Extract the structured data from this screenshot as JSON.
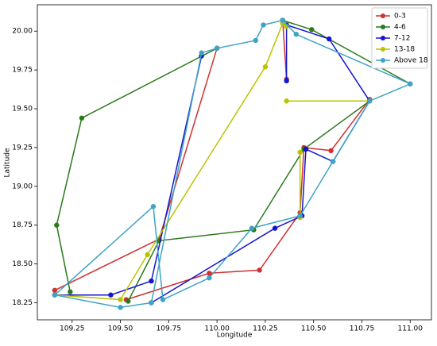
{
  "chart_data": {
    "type": "line",
    "x_label": "Longitude",
    "y_label": "Latitude",
    "xlim": [
      109.07,
      111.11
    ],
    "ylim": [
      18.14,
      20.17
    ],
    "xticks": [
      109.25,
      {
        "value": 109.5,
        "label": "109.50"
      },
      109.75,
      {
        "value": 110,
        "label": "110.00"
      },
      110.25,
      {
        "value": 110.5,
        "label": "110.50"
      },
      110.75,
      {
        "value": 111,
        "label": "111.00"
      }
    ],
    "yticks": [
      18.25,
      {
        "value": 18.5,
        "label": "18.50"
      },
      18.75,
      {
        "value": 19,
        "label": "19.00"
      },
      19.25,
      {
        "value": 19.5,
        "label": "19.50"
      },
      19.75,
      {
        "value": 20,
        "label": "20.00"
      }
    ],
    "legend": "upper right",
    "series": [
      {
        "name": "0-3",
        "color": "#d03030",
        "x": [
          109.16,
          109.7,
          110.0,
          null,
          109.53,
          109.96,
          110.22,
          110.43,
          110.45,
          110.59,
          110.79,
          null,
          110.34,
          110.36
        ],
        "values": [
          18.33,
          18.66,
          19.89,
          null,
          18.27,
          18.44,
          18.46,
          18.83,
          19.25,
          19.23,
          19.56,
          null,
          20.07,
          19.69
        ]
      },
      {
        "name": "4-6",
        "color": "#2a7a1a",
        "x": [
          109.24,
          109.17,
          109.3,
          110.0,
          null,
          109.54,
          109.7,
          110.19,
          110.45,
          110.79,
          null,
          110.34,
          110.49,
          111.0
        ],
        "values": [
          18.32,
          18.75,
          19.44,
          19.89,
          null,
          18.26,
          18.65,
          18.72,
          19.24,
          19.55,
          null,
          20.07,
          20.01,
          19.66
        ]
      },
      {
        "name": "7-12",
        "color": "#1515d0",
        "x": [
          109.16,
          109.45,
          109.66,
          109.92,
          null,
          109.66,
          110.3,
          110.44,
          110.46,
          110.6,
          110.79,
          110.58,
          110.36,
          110.36
        ],
        "values": [
          18.3,
          18.3,
          18.39,
          19.84,
          null,
          18.25,
          18.73,
          18.81,
          19.24,
          19.16,
          19.55,
          19.95,
          20.04,
          19.68
        ]
      },
      {
        "name": "13-18",
        "color": "#b8c400",
        "x": [
          109.16,
          109.5,
          109.64,
          110.25,
          110.34,
          110.36,
          null,
          110.36,
          110.79,
          null,
          110.43,
          110.43
        ],
        "values": [
          18.3,
          18.27,
          18.56,
          19.77,
          20.05,
          20.03,
          null,
          19.55,
          19.55,
          null,
          19.22,
          18.8
        ]
      },
      {
        "name": "Above 18",
        "color": "#3fa3c6",
        "x": [
          109.16,
          109.5,
          109.66,
          109.92,
          110.0,
          110.2,
          110.24,
          110.34,
          110.41,
          111.0,
          110.79,
          110.6,
          110.43,
          110.18,
          109.96,
          109.72,
          109.67,
          109.16
        ],
        "values": [
          18.3,
          18.22,
          18.25,
          19.86,
          19.89,
          19.94,
          20.04,
          20.07,
          19.98,
          19.66,
          19.55,
          19.16,
          18.81,
          18.73,
          18.41,
          18.27,
          18.87,
          18.3
        ]
      }
    ]
  }
}
